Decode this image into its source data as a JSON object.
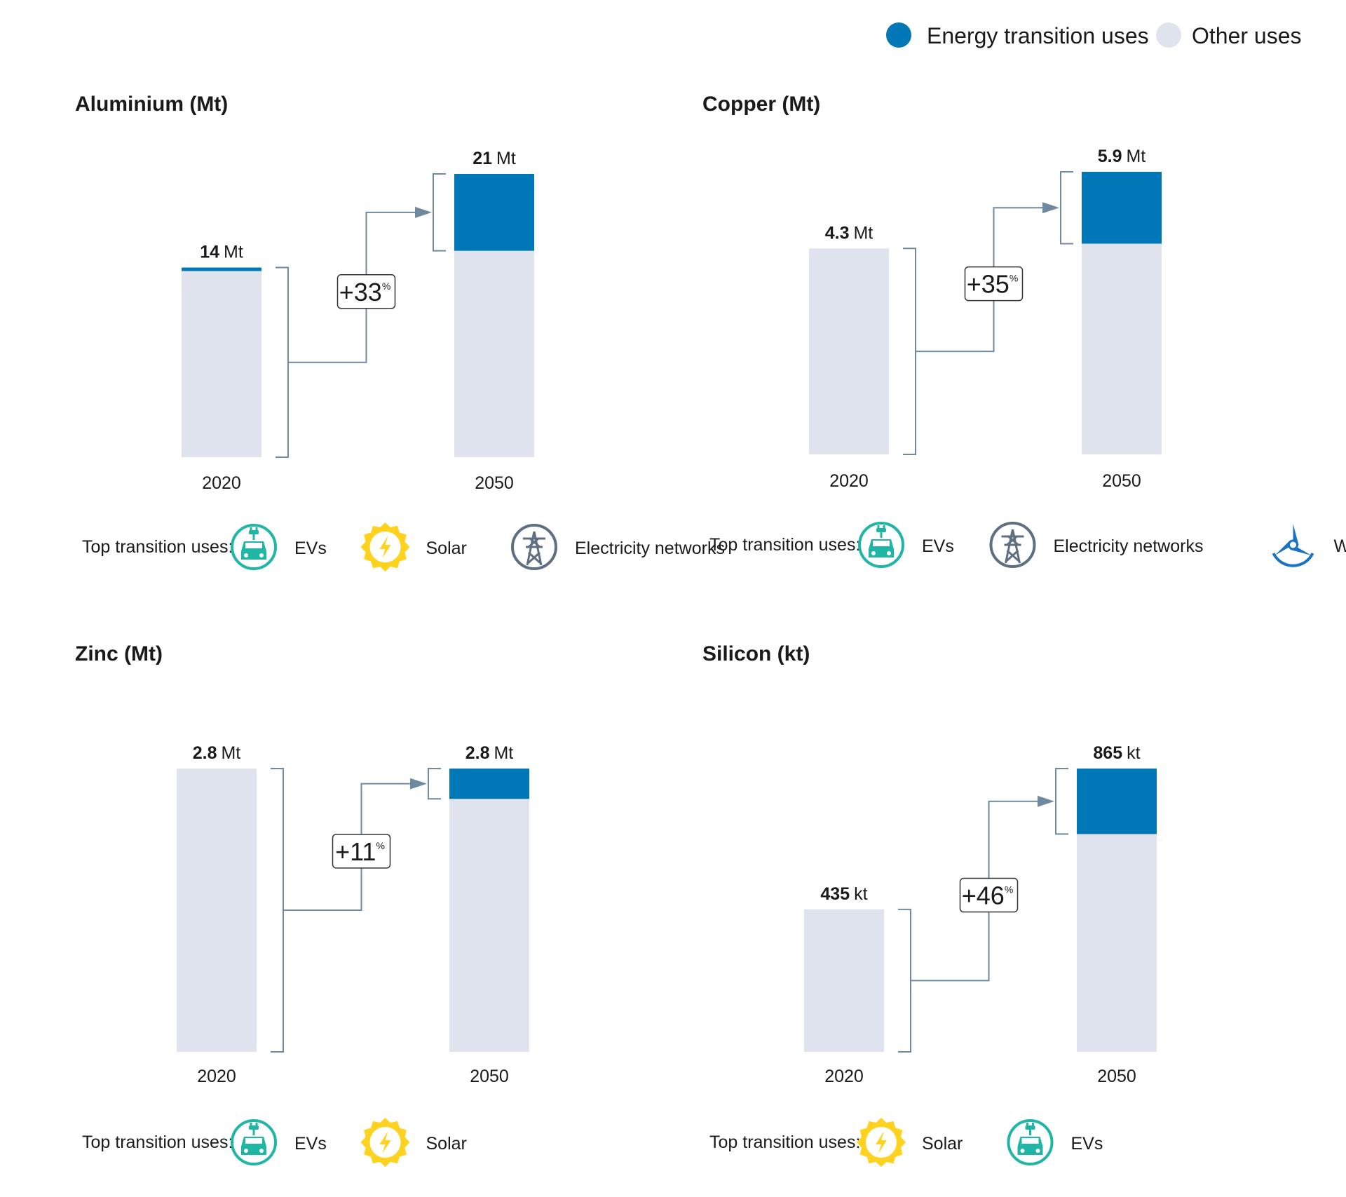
{
  "legend": {
    "energy_label": "Energy transition uses",
    "other_label": "Other uses",
    "energy_color": "#0077b6",
    "other_color": "#dee3ee"
  },
  "colors": {
    "connector": "#6f8aa0",
    "text": "#1a1a1a",
    "ev": "#1fb6a6",
    "solar": "#ffd21f",
    "networks": "#5d6f80",
    "wind": "#1a73c2"
  },
  "top_uses_label": "Top transition uses:",
  "chart_data": [
    {
      "type": "bar",
      "title": "Aluminium (Mt)",
      "categories": [
        "2020",
        "2050"
      ],
      "series": [
        {
          "name": "Energy transition uses",
          "values": [
            0.2,
            5.7
          ]
        },
        {
          "name": "Other uses",
          "values": [
            13.8,
            15.3
          ]
        }
      ],
      "totals": [
        14,
        21
      ],
      "unit": "Mt",
      "total_labels": [
        {
          "value": "14",
          "unit": "Mt"
        },
        {
          "value": "21",
          "unit": "Mt"
        }
      ],
      "growth": {
        "value": "+33",
        "suffix": "%"
      },
      "top_uses": [
        {
          "icon": "ev-icon",
          "label": "EVs"
        },
        {
          "icon": "solar-icon",
          "label": "Solar"
        },
        {
          "icon": "electricity-networks-icon",
          "label": "Electricity networks"
        }
      ]
    },
    {
      "type": "bar",
      "title": "Copper (Mt)",
      "categories": [
        "2020",
        "2050"
      ],
      "series": [
        {
          "name": "Energy transition uses",
          "values": [
            0,
            1.5
          ]
        },
        {
          "name": "Other uses",
          "values": [
            4.3,
            4.4
          ]
        }
      ],
      "totals": [
        4.3,
        5.9
      ],
      "unit": "Mt",
      "total_labels": [
        {
          "value": "4.3",
          "unit": "Mt"
        },
        {
          "value": "5.9",
          "unit": "Mt"
        }
      ],
      "growth": {
        "value": "+35",
        "suffix": "%"
      },
      "top_uses": [
        {
          "icon": "ev-icon",
          "label": "EVs"
        },
        {
          "icon": "electricity-networks-icon",
          "label": "Electricity networks"
        },
        {
          "icon": "wind-icon",
          "label": "Wind"
        }
      ]
    },
    {
      "type": "bar",
      "title": "Zinc (Mt)",
      "categories": [
        "2020",
        "2050"
      ],
      "series": [
        {
          "name": "Energy transition uses",
          "values": [
            0,
            0.3
          ]
        },
        {
          "name": "Other uses",
          "values": [
            2.8,
            2.5
          ]
        }
      ],
      "totals": [
        2.8,
        2.8
      ],
      "unit": "Mt",
      "total_labels": [
        {
          "value": "2.8",
          "unit": "Mt"
        },
        {
          "value": "2.8",
          "unit": "Mt"
        }
      ],
      "growth": {
        "value": "+11",
        "suffix": "%"
      },
      "top_uses": [
        {
          "icon": "ev-icon",
          "label": "EVs"
        },
        {
          "icon": "solar-icon",
          "label": "Solar"
        }
      ]
    },
    {
      "type": "bar",
      "title": "Silicon (kt)",
      "categories": [
        "2020",
        "2050"
      ],
      "series": [
        {
          "name": "Energy transition uses",
          "values": [
            0,
            200
          ]
        },
        {
          "name": "Other uses",
          "values": [
            435,
            665
          ]
        }
      ],
      "totals": [
        435,
        865
      ],
      "unit": "kt",
      "total_labels": [
        {
          "value": "435",
          "unit": "kt"
        },
        {
          "value": "865",
          "unit": "kt"
        }
      ],
      "growth": {
        "value": "+46",
        "suffix": "%"
      },
      "top_uses": [
        {
          "icon": "solar-icon",
          "label": "Solar"
        },
        {
          "icon": "ev-icon",
          "label": "EVs"
        }
      ]
    }
  ]
}
